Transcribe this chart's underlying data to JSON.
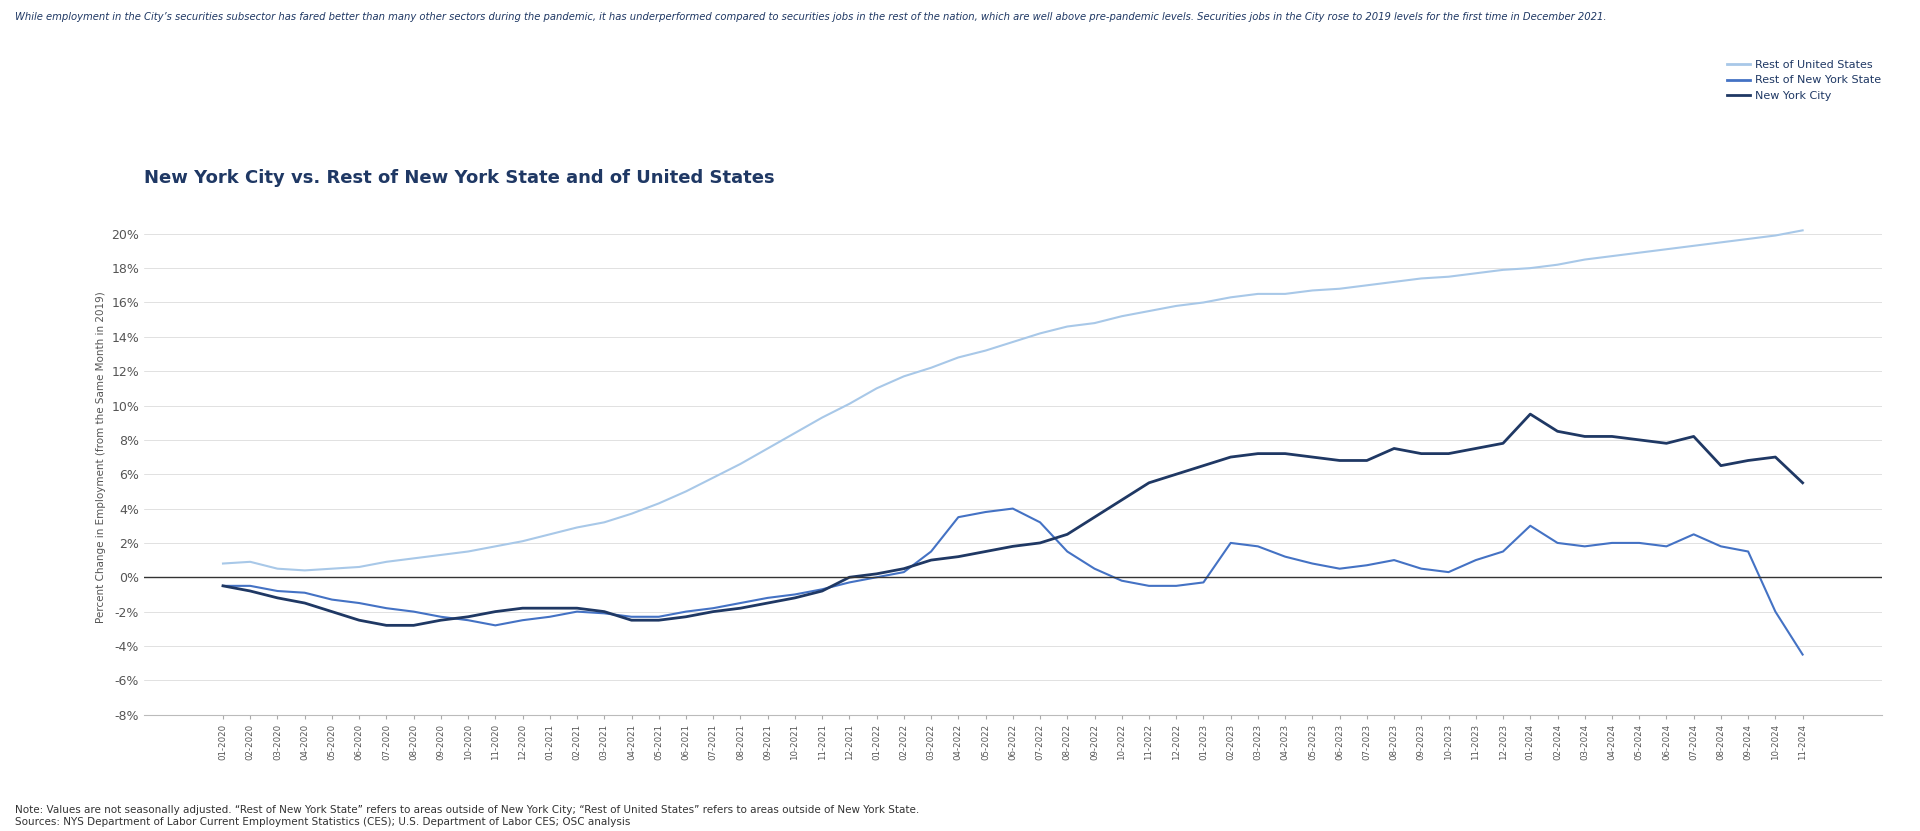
{
  "title": "New York City vs. Rest of New York State and of United States",
  "subtitle": "While employment in the City’s securities subsector has fared better than many other sectors during the pandemic, it has underperformed compared to securities jobs in the rest of the nation, which are well above pre-pandemic levels. Securities jobs in the City rose to 2019 levels for the first time in December 2021.",
  "ylabel": "Percent Change in Employment (from the Same Month in 2019)",
  "footnote": "Note: Values are not seasonally adjusted. “Rest of New York State” refers to areas outside of New York City; “Rest of United States” refers to areas outside of New York State.\nSources: NYS Department of Labor Current Employment Statistics (CES); U.S. Department of Labor CES; OSC analysis",
  "legend_labels": [
    "Rest of United States",
    "Rest of New York State",
    "New York City"
  ],
  "colors": {
    "rest_us": "#a8c8e8",
    "rest_ny": "#4472c4",
    "nyc": "#1f3864"
  },
  "xlabels": [
    "01-2020",
    "02-2020",
    "03-2020",
    "04-2020",
    "05-2020",
    "06-2020",
    "07-2020",
    "08-2020",
    "09-2020",
    "10-2020",
    "11-2020",
    "12-2020",
    "01-2021",
    "02-2021",
    "03-2021",
    "04-2021",
    "05-2021",
    "06-2021",
    "07-2021",
    "08-2021",
    "09-2021",
    "10-2021",
    "11-2021",
    "12-2021",
    "01-2022",
    "02-2022",
    "03-2022",
    "04-2022",
    "05-2022",
    "06-2022",
    "07-2022",
    "08-2022",
    "09-2022",
    "10-2022",
    "11-2022",
    "12-2022",
    "01-2023",
    "02-2023",
    "03-2023",
    "04-2023",
    "05-2023",
    "06-2023",
    "07-2023",
    "08-2023",
    "09-2023",
    "10-2023",
    "11-2023",
    "12-2023",
    "01-2024",
    "02-2024",
    "03-2024",
    "04-2024",
    "05-2024",
    "06-2024",
    "07-2024",
    "08-2024",
    "09-2024",
    "10-2024",
    "11-2024"
  ],
  "rest_us": [
    0.8,
    0.9,
    0.5,
    0.4,
    0.5,
    0.6,
    0.9,
    1.1,
    1.3,
    1.5,
    1.8,
    2.1,
    2.5,
    2.9,
    3.2,
    3.7,
    4.3,
    5.0,
    5.8,
    6.6,
    7.5,
    8.4,
    9.3,
    10.1,
    11.0,
    11.7,
    12.2,
    12.8,
    13.2,
    13.7,
    14.2,
    14.6,
    14.8,
    15.2,
    15.5,
    15.8,
    16.0,
    16.3,
    16.5,
    16.5,
    16.7,
    16.8,
    17.0,
    17.2,
    17.4,
    17.5,
    17.7,
    17.9,
    18.0,
    18.2,
    18.5,
    18.7,
    18.9,
    19.1,
    19.3,
    19.5,
    19.7,
    19.9,
    20.2
  ],
  "rest_ny": [
    -0.5,
    -0.5,
    -0.8,
    -0.9,
    -1.3,
    -1.5,
    -1.8,
    -2.0,
    -2.3,
    -2.5,
    -2.8,
    -2.5,
    -2.3,
    -2.0,
    -2.1,
    -2.3,
    -2.3,
    -2.0,
    -1.8,
    -1.5,
    -1.2,
    -1.0,
    -0.7,
    -0.3,
    0.0,
    0.3,
    1.5,
    3.5,
    3.8,
    4.0,
    3.2,
    1.5,
    0.5,
    -0.2,
    -0.5,
    -0.5,
    -0.3,
    2.0,
    1.8,
    1.2,
    0.8,
    0.5,
    0.7,
    1.0,
    0.5,
    0.3,
    1.0,
    1.5,
    3.0,
    2.0,
    1.8,
    2.0,
    2.0,
    1.8,
    2.5,
    1.8,
    1.5,
    -2.0,
    -4.5
  ],
  "nyc": [
    -0.5,
    -0.8,
    -1.2,
    -1.5,
    -2.0,
    -2.5,
    -2.8,
    -2.8,
    -2.5,
    -2.3,
    -2.0,
    -1.8,
    -1.8,
    -1.8,
    -2.0,
    -2.5,
    -2.5,
    -2.3,
    -2.0,
    -1.8,
    -1.5,
    -1.2,
    -0.8,
    0.0,
    0.2,
    0.5,
    1.0,
    1.2,
    1.5,
    1.8,
    2.0,
    2.5,
    3.5,
    4.5,
    5.5,
    6.0,
    6.5,
    7.0,
    7.2,
    7.2,
    7.0,
    6.8,
    6.8,
    7.5,
    7.2,
    7.2,
    7.5,
    7.8,
    9.5,
    8.5,
    8.2,
    8.2,
    8.0,
    7.8,
    8.2,
    6.5,
    6.8,
    7.0,
    5.5
  ],
  "ylim": [
    -8,
    22
  ],
  "yticks": [
    -8,
    -6,
    -4,
    -2,
    0,
    2,
    4,
    6,
    8,
    10,
    12,
    14,
    16,
    18,
    20
  ],
  "bg_color": "#ffffff",
  "grid_color": "#d5d5d5",
  "title_color": "#1f3864",
  "subtitle_color": "#1f3864",
  "axis_color": "#555555",
  "zero_line_color": "#333333"
}
